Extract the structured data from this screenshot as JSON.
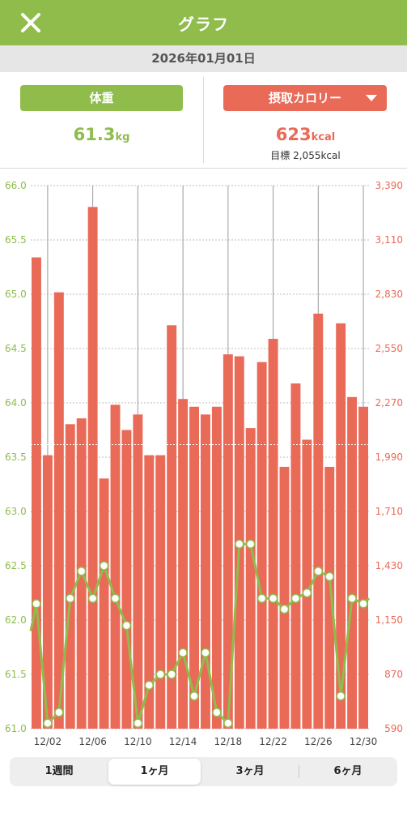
{
  "header": {
    "title": "グラフ",
    "close_icon": "close-icon"
  },
  "date": "2026年01月01日",
  "weight": {
    "button_label": "体重",
    "value": "61.3",
    "unit": "kg"
  },
  "calories": {
    "button_label": "摂取カロリー",
    "dropdown_icon": "caret-down-icon",
    "value": "623",
    "unit": "kcal",
    "target_text": "目標 2,055kcal"
  },
  "period_tabs": [
    {
      "label": "1週間",
      "active": false
    },
    {
      "label": "1ヶ月",
      "active": true
    },
    {
      "label": "3ヶ月",
      "active": false
    },
    {
      "label": "6ヶ月",
      "active": false
    }
  ],
  "colors": {
    "weight": "#8fbc4b",
    "calorie": "#ea6a58"
  },
  "chart_data": {
    "type": "bar+line",
    "x_tick_labels": [
      "12/02",
      "12/06",
      "12/10",
      "12/14",
      "12/18",
      "12/22",
      "12/26",
      "12/30"
    ],
    "bar_series": {
      "axis": "right",
      "values": [
        3020,
        2000,
        2840,
        2160,
        2190,
        3280,
        1880,
        2260,
        2130,
        2210,
        2000,
        2000,
        2670,
        2290,
        2250,
        2210,
        2250,
        2520,
        2510,
        2140,
        2480,
        2600,
        1940,
        2370,
        2080,
        2730,
        1940,
        2680,
        2300,
        2250
      ]
    },
    "line_series": {
      "axis": "left",
      "values": [
        62.15,
        61.05,
        61.15,
        62.2,
        62.45,
        62.2,
        62.5,
        62.2,
        61.95,
        61.05,
        61.4,
        61.5,
        61.5,
        61.7,
        61.3,
        61.7,
        61.15,
        61.05,
        62.7,
        62.7,
        62.2,
        62.2,
        62.1,
        62.2,
        62.25,
        62.45,
        62.4,
        61.3,
        62.2,
        62.15
      ],
      "leading_value": 61.9,
      "trailing_value": 62.2
    },
    "left_axis": {
      "ticks": [
        "61.0",
        "61.5",
        "62.0",
        "62.5",
        "63.0",
        "63.5",
        "64.0",
        "64.5",
        "65.0",
        "65.5",
        "66.0"
      ],
      "min": 61.0,
      "max": 66.0
    },
    "right_axis": {
      "ticks": [
        "590",
        "870",
        "1,150",
        "1,430",
        "1,710",
        "1,990",
        "2,270",
        "2,550",
        "2,830",
        "3,110",
        "3,390"
      ],
      "min": 590,
      "max": 3390
    },
    "target_line_value": 2055,
    "grid": true
  }
}
